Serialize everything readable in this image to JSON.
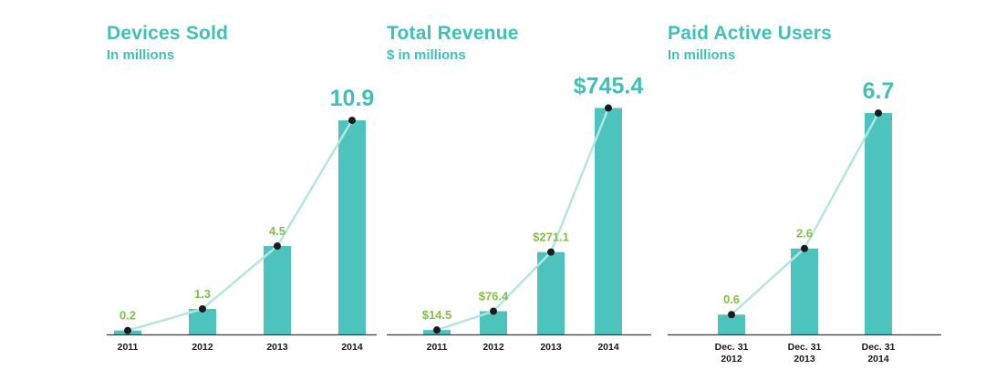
{
  "colors": {
    "bar": "#4cc3bd",
    "accent": "#3fc0b9",
    "label_green": "#7fc241",
    "trend": "#b3e6e2"
  },
  "chart_data": [
    {
      "type": "bar",
      "title": "Devices Sold",
      "subtitle": "In millions",
      "categories": [
        [
          "2011"
        ],
        [
          "2012"
        ],
        [
          "2013"
        ],
        [
          "2014"
        ]
      ],
      "values": [
        0.2,
        1.3,
        4.5,
        10.9
      ],
      "labels": [
        "0.2",
        "1.3",
        "4.5",
        "10.9"
      ],
      "trend_line": true,
      "ylim": [
        0,
        11.6
      ]
    },
    {
      "type": "bar",
      "title": "Total Revenue",
      "subtitle": "$ in millions",
      "categories": [
        [
          "2011"
        ],
        [
          "2012"
        ],
        [
          "2013"
        ],
        [
          "2014"
        ]
      ],
      "values": [
        14.5,
        76.4,
        271.1,
        745.4
      ],
      "labels": [
        "$14.5",
        "$76.4",
        "$271.1",
        "$745.4"
      ],
      "trend_line": true,
      "ylim": [
        0,
        765
      ]
    },
    {
      "type": "bar",
      "title": "Paid Active Users",
      "subtitle": "In millions",
      "categories": [
        [
          "Dec. 31",
          "2012"
        ],
        [
          "Dec. 31",
          "2013"
        ],
        [
          "Dec. 31",
          "2014"
        ]
      ],
      "values": [
        0.6,
        2.6,
        6.7
      ],
      "labels": [
        "0.6",
        "2.6",
        "6.7"
      ],
      "trend_line": true,
      "ylim": [
        0,
        6.95
      ]
    }
  ]
}
